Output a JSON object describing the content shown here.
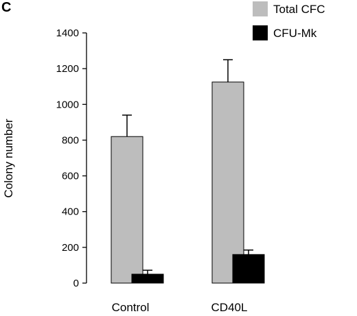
{
  "panel_label": "C",
  "chart_data": {
    "type": "bar",
    "title": "",
    "xlabel": "",
    "ylabel": "Colony number",
    "ylim": [
      0,
      1400
    ],
    "yticks": [
      0,
      200,
      400,
      600,
      800,
      1000,
      1200,
      1400
    ],
    "categories": [
      "Control",
      "CD40L"
    ],
    "series": [
      {
        "name": "Total CFC",
        "color": "#bdbdbd",
        "values": [
          820,
          1125
        ],
        "errors": [
          120,
          125
        ]
      },
      {
        "name": "CFU-Mk",
        "color": "#000000",
        "values": [
          50,
          160
        ],
        "errors": [
          22,
          25
        ]
      }
    ],
    "legend_position": "top-right",
    "grid": false
  }
}
